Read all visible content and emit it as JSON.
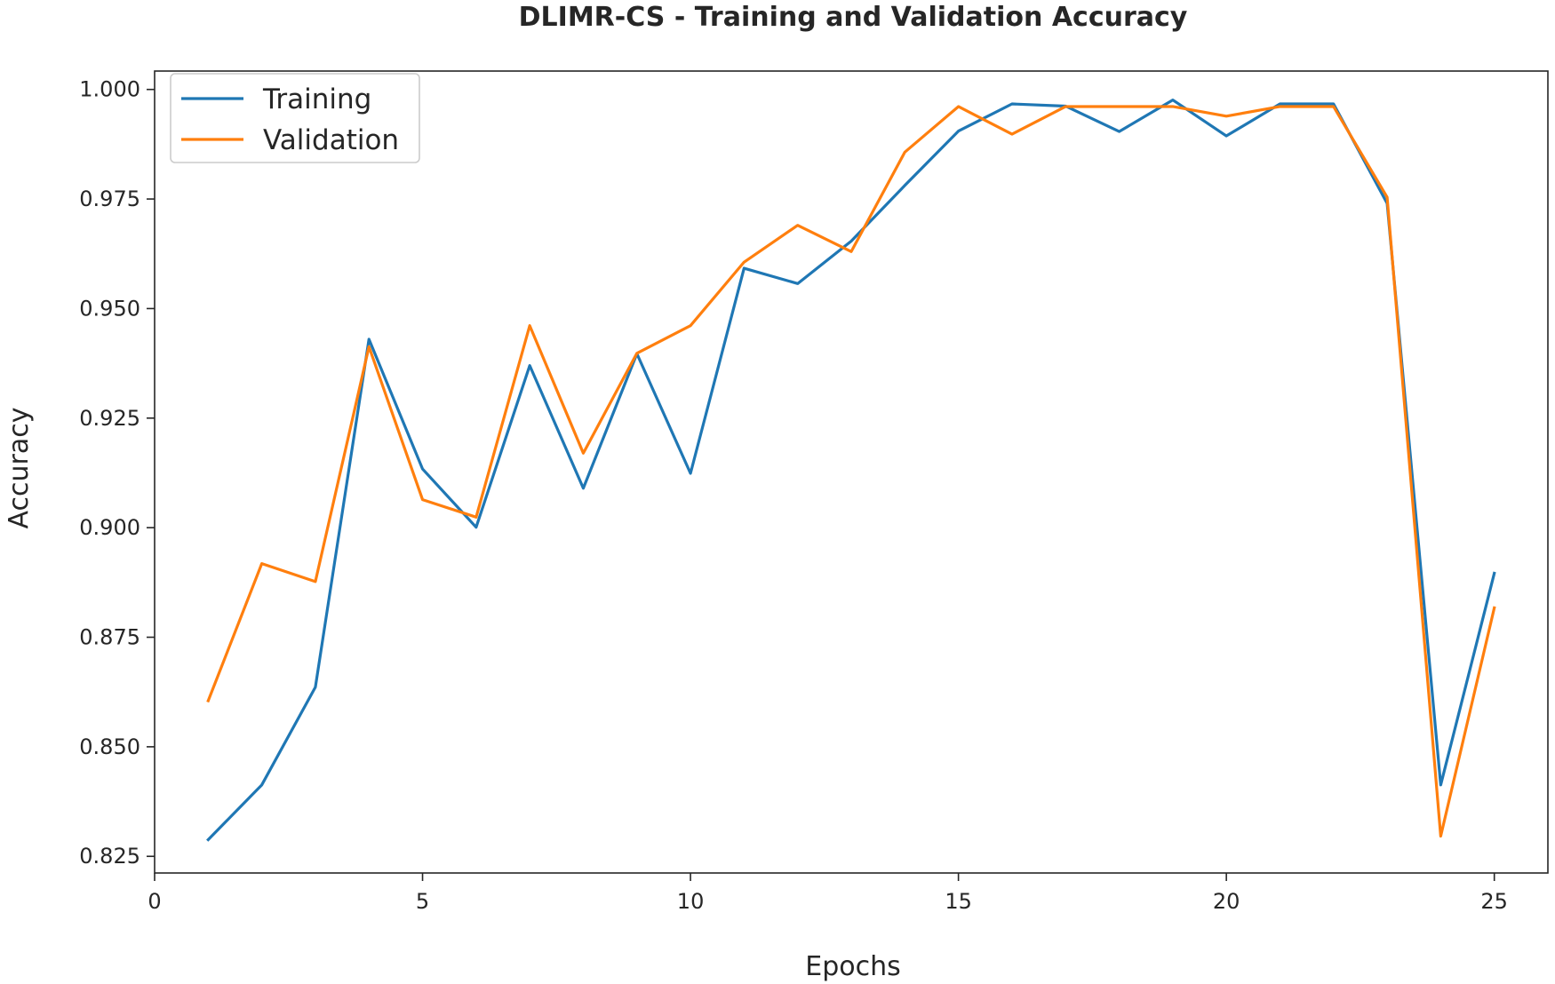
{
  "chart_data": {
    "type": "line",
    "title": "DLIMR-CS - Training and Validation Accuracy",
    "xlabel": "Epochs",
    "ylabel": "Accuracy",
    "xlim": [
      0,
      26
    ],
    "ylim": [
      0.8212,
      1.0042
    ],
    "xticks": [
      0,
      5,
      10,
      15,
      20,
      25
    ],
    "xtick_labels": [
      "0",
      "5",
      "10",
      "15",
      "20",
      "25"
    ],
    "yticks": [
      0.825,
      0.85,
      0.875,
      0.9,
      0.925,
      0.95,
      0.975,
      1.0
    ],
    "ytick_labels": [
      "0.825",
      "0.850",
      "0.875",
      "0.900",
      "0.925",
      "0.950",
      "0.975",
      "1.000"
    ],
    "grid": false,
    "legend_position": "top-left",
    "x": [
      1,
      2,
      3,
      4,
      5,
      6,
      7,
      8,
      9,
      10,
      11,
      12,
      13,
      14,
      15,
      16,
      17,
      18,
      19,
      20,
      21,
      22,
      23,
      24,
      25
    ],
    "series": [
      {
        "name": "Training",
        "color": "#1f77b4",
        "values": [
          0.8288,
          0.8413,
          0.8636,
          0.943,
          0.9134,
          0.9001,
          0.937,
          0.909,
          0.9397,
          0.9124,
          0.9592,
          0.9557,
          0.9654,
          0.9781,
          0.9905,
          0.9967,
          0.9962,
          0.9904,
          0.9976,
          0.9894,
          0.9967,
          0.9967,
          0.974,
          0.8413,
          0.8896
        ]
      },
      {
        "name": "Validation",
        "color": "#ff7f0e",
        "values": [
          0.8605,
          0.8918,
          0.8877,
          0.9413,
          0.9064,
          0.9024,
          0.9461,
          0.917,
          0.9398,
          0.9461,
          0.9606,
          0.969,
          0.963,
          0.9857,
          0.9961,
          0.9898,
          0.9961,
          0.9961,
          0.9961,
          0.9939,
          0.9961,
          0.9961,
          0.9754,
          0.8296,
          0.8817
        ]
      }
    ]
  }
}
